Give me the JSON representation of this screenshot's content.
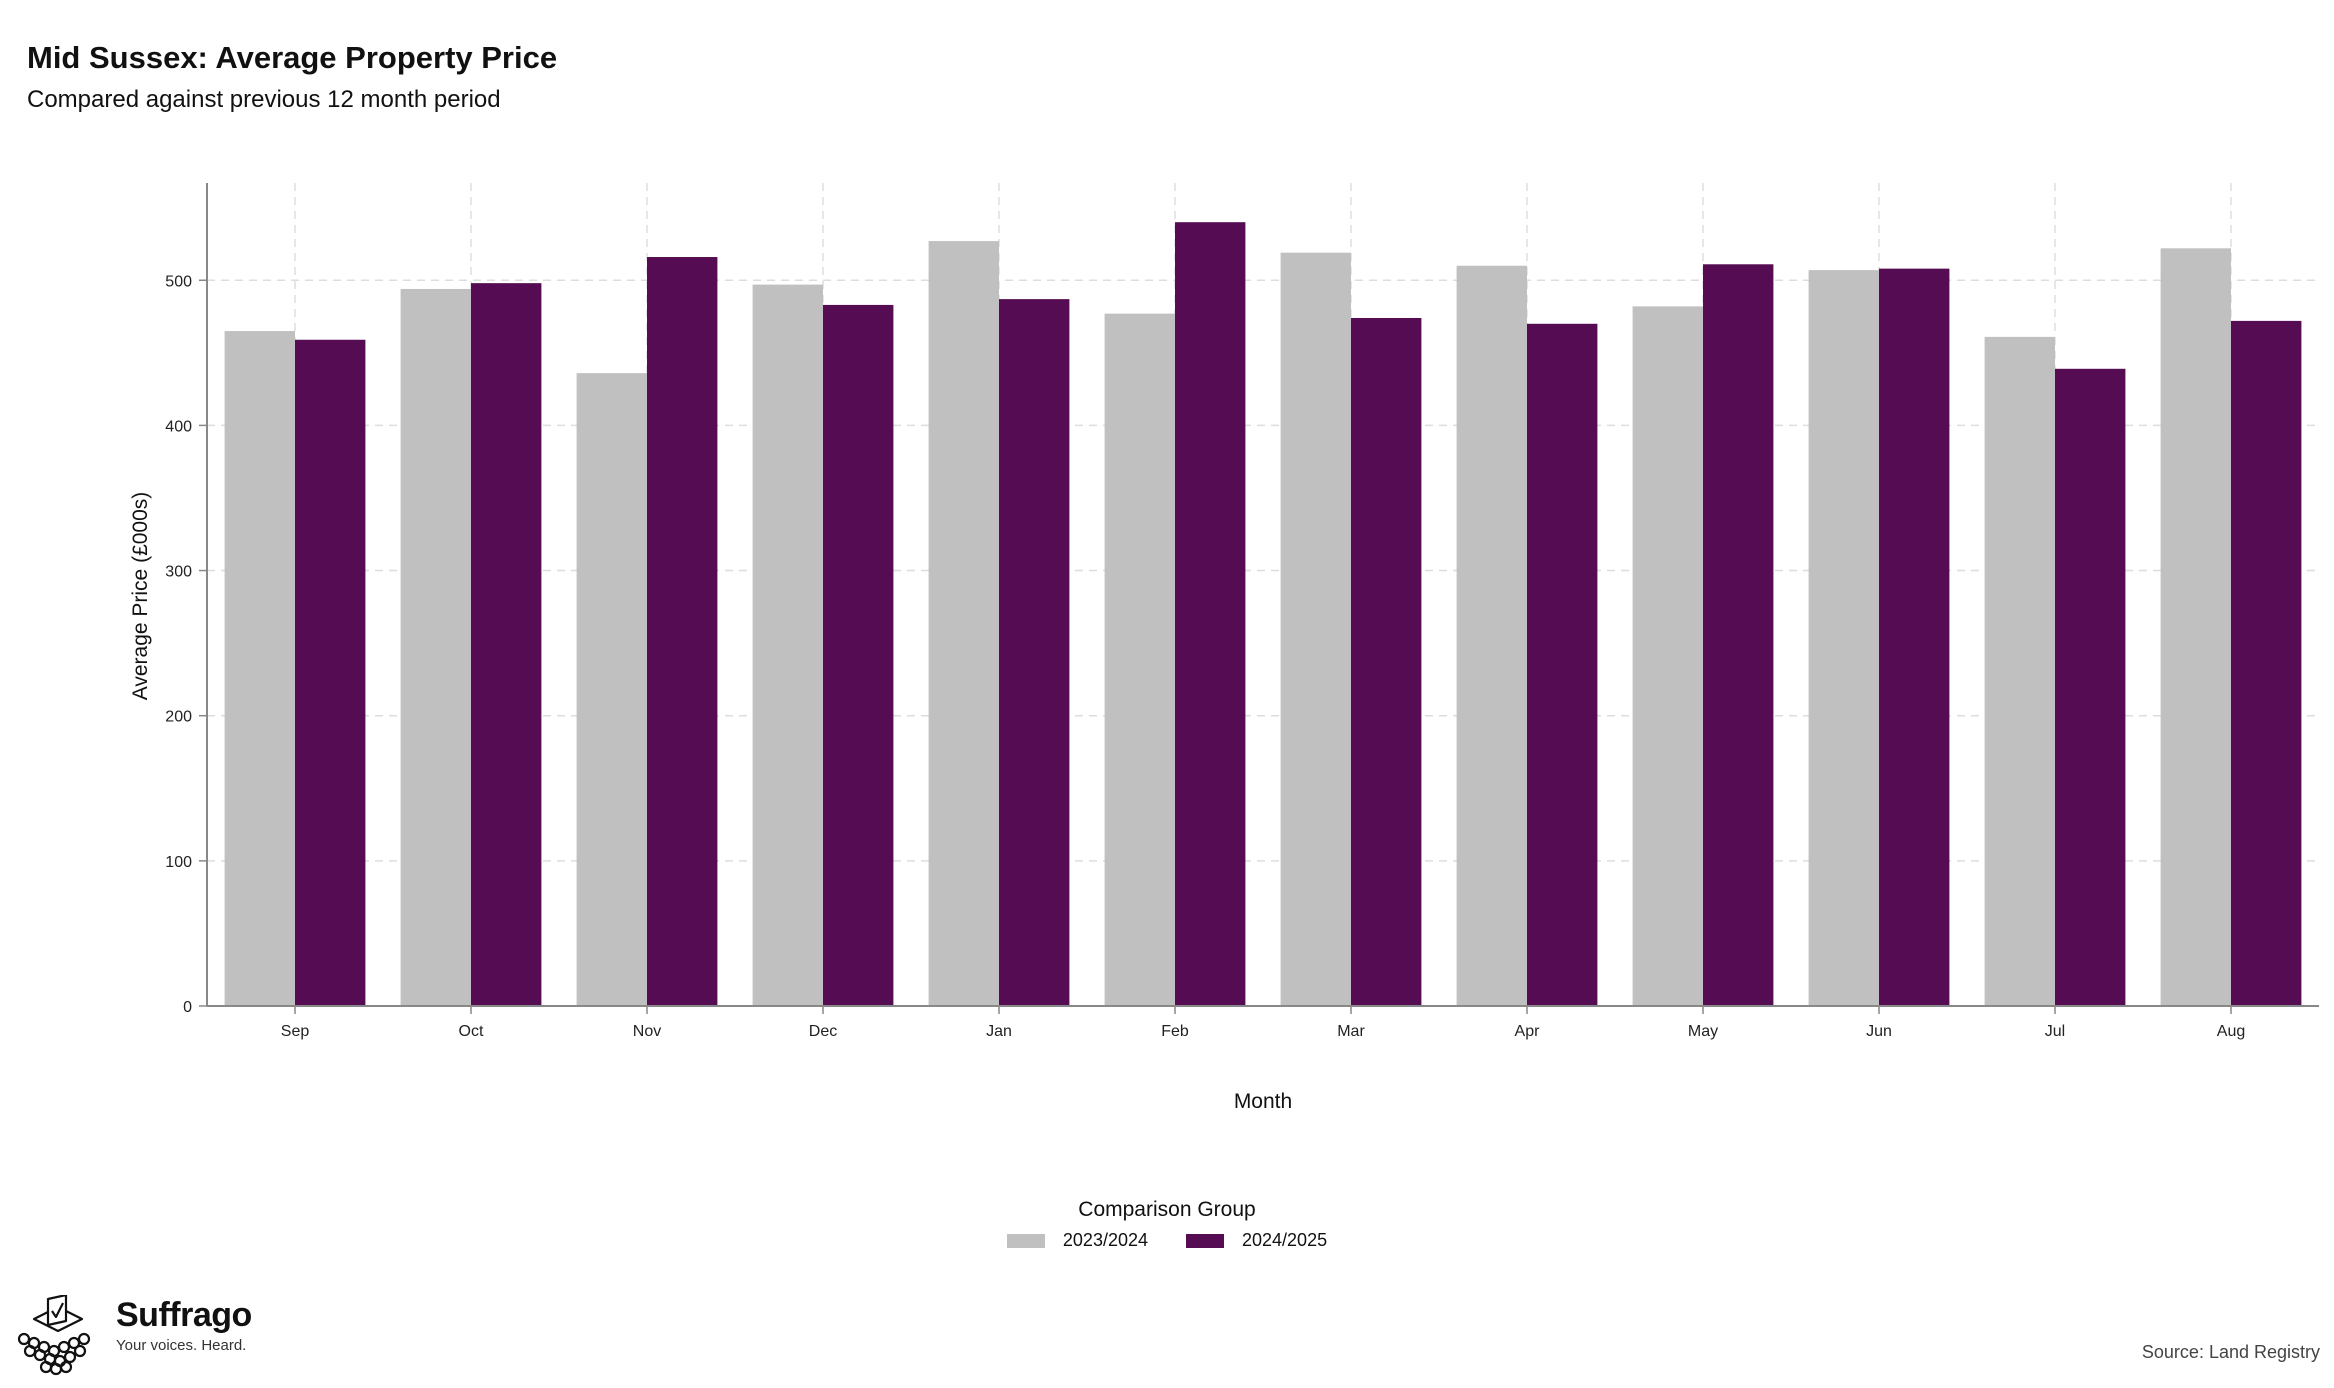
{
  "chart_data": {
    "type": "bar",
    "title": "Mid Sussex: Average Property Price",
    "subtitle": "Compared against previous 12 month period",
    "xlabel": "Month",
    "ylabel": "Average Price (£000s)",
    "ylim": [
      0,
      567
    ],
    "yticks": [
      0,
      100,
      200,
      300,
      400,
      500
    ],
    "grid": true,
    "legend_title": "Comparison Group",
    "legend_position": "bottom",
    "categories": [
      "Sep",
      "Oct",
      "Nov",
      "Dec",
      "Jan",
      "Feb",
      "Mar",
      "Apr",
      "May",
      "Jun",
      "Jul",
      "Aug"
    ],
    "series": [
      {
        "name": "2023/2024",
        "color": "#c0c0c0",
        "values": [
          465,
          494,
          436,
          497,
          527,
          477,
          519,
          510,
          482,
          507,
          461,
          522
        ]
      },
      {
        "name": "2024/2025",
        "color": "#550c52",
        "values": [
          459,
          498,
          516,
          483,
          487,
          540,
          474,
          470,
          511,
          508,
          439,
          472
        ]
      }
    ]
  },
  "footer": {
    "brand_name": "Suffrago",
    "brand_tagline": "Your voices. Heard.",
    "source": "Source: Land Registry",
    "logo_icon": "ballot-box-icon"
  }
}
